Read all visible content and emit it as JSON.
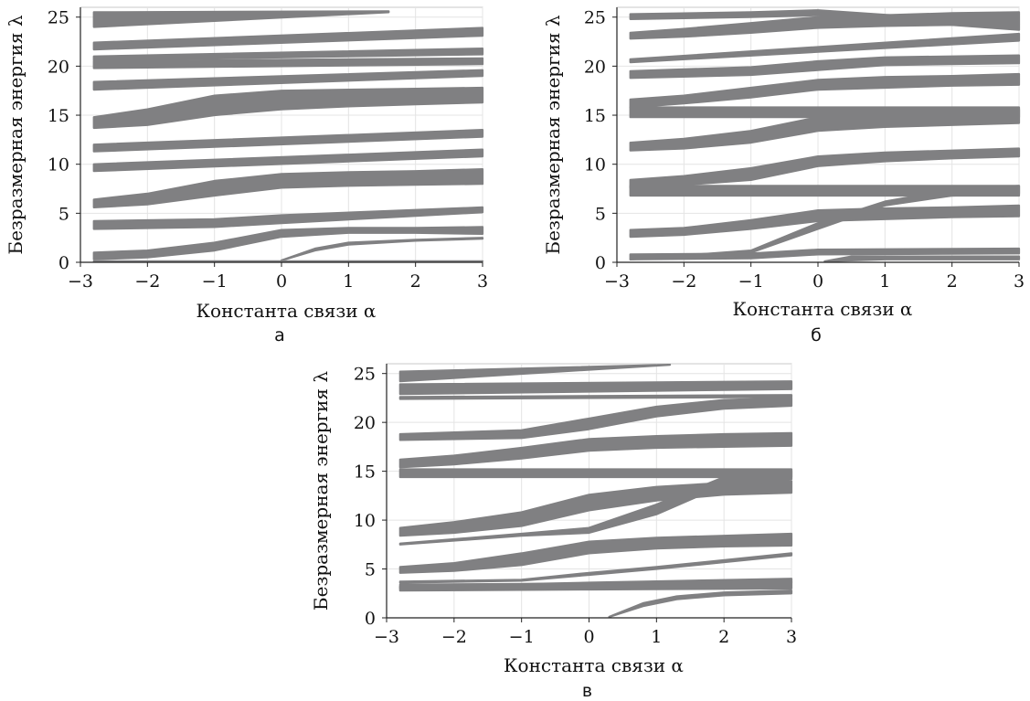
{
  "chart_data": [
    {
      "type": "area",
      "panel_label": "а",
      "xlabel": "Константа связи α",
      "ylabel": "Безразмерная энергия λ",
      "xlim": [
        -3,
        3
      ],
      "ylim": [
        0,
        26
      ],
      "x_ticks": [
        "−3",
        "−2",
        "−1",
        "0",
        "1",
        "2",
        "3"
      ],
      "y_ticks": [
        "0",
        "5",
        "10",
        "15",
        "20",
        "25"
      ],
      "grid": true,
      "band_color": "#808082",
      "bands": [
        {
          "x": [
            -2.8,
            3
          ],
          "lower": [
            0.1,
            0.1
          ],
          "upper": [
            0.1,
            0.1
          ]
        },
        {
          "x": [
            -2.8,
            -2,
            -1,
            0,
            1,
            2,
            3
          ],
          "lower": [
            0.3,
            0.5,
            1.2,
            2.6,
            3.0,
            3.0,
            2.9
          ],
          "upper": [
            1.0,
            1.2,
            2.0,
            3.3,
            3.5,
            3.5,
            3.6
          ]
        },
        {
          "x": [
            -2.8,
            -1,
            0,
            3
          ],
          "lower": [
            3.4,
            3.6,
            4.0,
            5.1
          ],
          "upper": [
            4.2,
            4.4,
            4.8,
            5.6
          ]
        },
        {
          "x": [
            0,
            0.5,
            1,
            2,
            3
          ],
          "lower": [
            0.2,
            1.2,
            1.8,
            2.2,
            2.4
          ],
          "upper": [
            0.2,
            1.4,
            2.0,
            2.3,
            2.5
          ]
        },
        {
          "x": [
            -2.8,
            -2,
            -1,
            0,
            1,
            2,
            3
          ],
          "lower": [
            5.6,
            5.9,
            6.8,
            7.6,
            7.8,
            7.9,
            8.0
          ],
          "upper": [
            6.4,
            7.0,
            8.3,
            9.0,
            9.2,
            9.3,
            9.5
          ]
        },
        {
          "x": [
            -2.8,
            3
          ],
          "lower": [
            9.3,
            10.8
          ],
          "upper": [
            10.0,
            11.5
          ]
        },
        {
          "x": [
            -2.8,
            3
          ],
          "lower": [
            11.3,
            12.8
          ],
          "upper": [
            12.0,
            13.5
          ]
        },
        {
          "x": [
            -2.8,
            -2,
            -1,
            0,
            1,
            2,
            3
          ],
          "lower": [
            13.7,
            14.0,
            15.0,
            15.6,
            15.9,
            16.1,
            16.3
          ],
          "upper": [
            14.8,
            15.6,
            17.0,
            17.5,
            17.6,
            17.7,
            17.8
          ]
        },
        {
          "x": [
            -2.8,
            3
          ],
          "lower": [
            17.6,
            19.0
          ],
          "upper": [
            18.4,
            19.6
          ]
        },
        {
          "x": [
            -2.8,
            3
          ],
          "lower": [
            19.8,
            20.2
          ],
          "upper": [
            20.5,
            20.8
          ]
        },
        {
          "x": [
            -2.8,
            3
          ],
          "lower": [
            20.6,
            21.2
          ],
          "upper": [
            21.0,
            21.8
          ]
        },
        {
          "x": [
            -2.8,
            3
          ],
          "lower": [
            21.7,
            23.1
          ],
          "upper": [
            22.4,
            23.9
          ]
        },
        {
          "x": [
            -2.8,
            1.6
          ],
          "lower": [
            24.0,
            25.5
          ],
          "upper": [
            25.5,
            25.6
          ]
        }
      ]
    },
    {
      "type": "area",
      "panel_label": "б",
      "xlabel": "Константа связи α",
      "ylabel": "Безразмерная энергия λ",
      "xlim": [
        -3,
        3
      ],
      "ylim": [
        0,
        26
      ],
      "x_ticks": [
        "−3",
        "−2",
        "−1",
        "0",
        "1",
        "2",
        "3"
      ],
      "y_ticks": [
        "0",
        "5",
        "10",
        "15",
        "20",
        "25"
      ],
      "grid": true,
      "band_color": "#808082",
      "bands": [
        {
          "x": [
            -2.8,
            -1,
            0,
            3
          ],
          "lower": [
            0.3,
            0.4,
            0.8,
            0.9
          ],
          "upper": [
            0.8,
            0.9,
            1.3,
            1.4
          ]
        },
        {
          "x": [
            0.1,
            0.5,
            1,
            2,
            3
          ],
          "lower": [
            0.1,
            0.2,
            0.3,
            0.3,
            0.3
          ],
          "upper": [
            0.1,
            0.6,
            0.6,
            0.6,
            0.6
          ]
        },
        {
          "x": [
            -2.8,
            -2,
            -1,
            0,
            1,
            2,
            3
          ],
          "lower": [
            2.6,
            2.8,
            3.4,
            4.2,
            4.4,
            4.6,
            4.7
          ],
          "upper": [
            3.3,
            3.5,
            4.3,
            5.3,
            5.5,
            5.6,
            5.8
          ]
        },
        {
          "x": [
            -2.8,
            -1,
            0,
            1,
            2,
            3
          ],
          "lower": [
            0.3,
            1.0,
            3.4,
            5.8,
            6.8,
            7.0
          ],
          "upper": [
            0.3,
            1.2,
            4.0,
            6.2,
            7.4,
            7.8
          ]
        },
        {
          "x": [
            -2.8,
            3
          ],
          "lower": [
            6.8,
            6.8
          ],
          "upper": [
            7.8,
            7.8
          ]
        },
        {
          "x": [
            -2.8,
            -2,
            -1,
            0,
            1,
            2,
            3
          ],
          "lower": [
            7.6,
            7.9,
            8.4,
            9.8,
            10.3,
            10.6,
            10.8
          ],
          "upper": [
            8.4,
            8.8,
            9.6,
            10.8,
            11.2,
            11.4,
            11.6
          ]
        },
        {
          "x": [
            -2.8,
            -2,
            -1,
            0,
            1,
            2,
            3
          ],
          "lower": [
            11.4,
            11.6,
            12.2,
            13.4,
            13.8,
            14.0,
            14.2
          ],
          "upper": [
            12.2,
            12.6,
            13.4,
            14.8,
            15.2,
            15.4,
            15.6
          ]
        },
        {
          "x": [
            -2.8,
            3
          ],
          "lower": [
            14.8,
            14.8
          ],
          "upper": [
            15.8,
            15.8
          ]
        },
        {
          "x": [
            -2.8,
            -2,
            -1,
            0,
            1,
            2,
            3
          ],
          "lower": [
            15.8,
            16.2,
            16.8,
            17.6,
            17.8,
            18.0,
            18.1
          ],
          "upper": [
            16.6,
            17.0,
            17.8,
            18.6,
            18.9,
            19.0,
            19.2
          ]
        },
        {
          "x": [
            -2.8,
            -1,
            0,
            1,
            2,
            3
          ],
          "lower": [
            18.8,
            19.1,
            19.6,
            20.1,
            20.2,
            20.3
          ],
          "upper": [
            19.5,
            19.9,
            20.5,
            20.9,
            21.0,
            21.1
          ]
        },
        {
          "x": [
            -2.8,
            3
          ],
          "lower": [
            20.4,
            22.6
          ],
          "upper": [
            20.7,
            23.3
          ]
        },
        {
          "x": [
            -2.8,
            -2,
            -1,
            0,
            1,
            2,
            3
          ],
          "lower": [
            22.8,
            23.0,
            23.4,
            23.9,
            24.1,
            24.2,
            24.3
          ],
          "upper": [
            23.4,
            23.8,
            24.4,
            25.0,
            25.2,
            25.4,
            25.5
          ]
        },
        {
          "x": [
            -2.8,
            -1,
            0,
            3
          ],
          "lower": [
            24.8,
            25.0,
            25.2,
            23.7
          ],
          "upper": [
            25.3,
            25.5,
            25.7,
            24.3
          ]
        }
      ]
    },
    {
      "type": "area",
      "panel_label": "в",
      "xlabel": "Константа связи α",
      "ylabel": "Безразмерная энергия λ",
      "xlim": [
        -3,
        3
      ],
      "ylim": [
        0,
        26
      ],
      "x_ticks": [
        "−3",
        "−2",
        "−1",
        "0",
        "1",
        "2",
        "3"
      ],
      "y_ticks": [
        "0",
        "5",
        "10",
        "15",
        "20",
        "25"
      ],
      "grid": true,
      "band_color": "#808082",
      "bands": [
        {
          "x": [
            0.3,
            0.8,
            1.3,
            2,
            3
          ],
          "lower": [
            0.1,
            1.2,
            1.9,
            2.3,
            2.5
          ],
          "upper": [
            0.1,
            1.5,
            2.2,
            2.6,
            2.8
          ]
        },
        {
          "x": [
            -2.8,
            0,
            3
          ],
          "lower": [
            2.8,
            2.9,
            3.0
          ],
          "upper": [
            3.4,
            3.5,
            3.7
          ]
        },
        {
          "x": [
            -2.8,
            0,
            3
          ],
          "lower": [
            3.0,
            3.3,
            3.6
          ],
          "upper": [
            3.2,
            3.6,
            4.0
          ]
        },
        {
          "x": [
            -2.8,
            -2,
            -1,
            0,
            1,
            2,
            3
          ],
          "lower": [
            4.6,
            4.8,
            5.4,
            6.6,
            7.1,
            7.3,
            7.4
          ],
          "upper": [
            5.2,
            5.6,
            6.6,
            7.8,
            8.2,
            8.4,
            8.6
          ]
        },
        {
          "x": [
            -2.8,
            -1,
            0,
            1,
            3
          ],
          "lower": [
            3.6,
            3.8,
            4.4,
            5.0,
            6.4
          ],
          "upper": [
            3.7,
            3.9,
            4.6,
            5.2,
            6.6
          ]
        },
        {
          "x": [
            -2.8,
            -2,
            -1,
            0,
            1,
            2,
            3
          ],
          "lower": [
            8.4,
            8.7,
            9.4,
            11.0,
            12.0,
            12.6,
            12.8
          ],
          "upper": [
            9.2,
            9.8,
            10.8,
            12.6,
            13.4,
            13.8,
            14.0
          ]
        },
        {
          "x": [
            -2.8,
            -1,
            0,
            1,
            2,
            3
          ],
          "lower": [
            7.5,
            8.4,
            8.7,
            10.6,
            13.6,
            14.2
          ],
          "upper": [
            7.6,
            8.6,
            9.2,
            11.6,
            14.4,
            15.0
          ]
        },
        {
          "x": [
            -2.8,
            3
          ],
          "lower": [
            14.4,
            14.4
          ],
          "upper": [
            15.2,
            15.2
          ]
        },
        {
          "x": [
            -2.8,
            -2,
            -1,
            0,
            1,
            2,
            3
          ],
          "lower": [
            15.4,
            15.7,
            16.3,
            17.1,
            17.4,
            17.5,
            17.6
          ],
          "upper": [
            16.2,
            16.6,
            17.4,
            18.3,
            18.6,
            18.8,
            18.9
          ]
        },
        {
          "x": [
            -2.8,
            -1,
            0,
            1,
            2,
            3
          ],
          "lower": [
            18.2,
            18.4,
            19.3,
            20.6,
            21.4,
            21.7
          ],
          "upper": [
            18.8,
            19.2,
            20.4,
            21.6,
            22.3,
            22.5
          ]
        },
        {
          "x": [
            -2.8,
            3
          ],
          "lower": [
            22.4,
            22.6
          ],
          "upper": [
            22.6,
            22.8
          ]
        },
        {
          "x": [
            -2.8,
            3
          ],
          "lower": [
            22.9,
            23.4
          ],
          "upper": [
            23.9,
            24.2
          ]
        },
        {
          "x": [
            -2.8,
            1.2
          ],
          "lower": [
            24.2,
            25.9
          ],
          "upper": [
            25.2,
            25.9
          ]
        }
      ]
    }
  ]
}
